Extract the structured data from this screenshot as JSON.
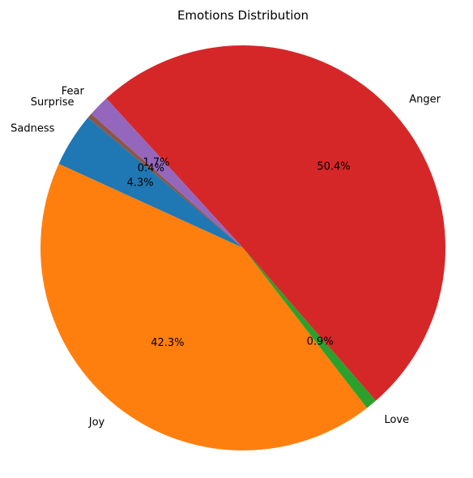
{
  "chart_data": {
    "type": "pie",
    "title": "Emotions Distribution",
    "start_angle_deg": 140,
    "direction": "counterclockwise",
    "slices": [
      {
        "label": "Sadness",
        "value": 4.3,
        "pct_label": "4.3%",
        "color": "#1f77b4"
      },
      {
        "label": "Joy",
        "value": 42.3,
        "pct_label": "42.3%",
        "color": "#ff7f0e"
      },
      {
        "label": "Love",
        "value": 0.9,
        "pct_label": "0.9%",
        "color": "#2ca02c"
      },
      {
        "label": "Anger",
        "value": 50.4,
        "pct_label": "50.4%",
        "color": "#d62728"
      },
      {
        "label": "Fear",
        "value": 1.7,
        "pct_label": "1.7%",
        "color": "#9467bd"
      },
      {
        "label": "Surprise",
        "value": 0.4,
        "pct_label": "0.4%",
        "color": "#8c564b"
      }
    ]
  }
}
